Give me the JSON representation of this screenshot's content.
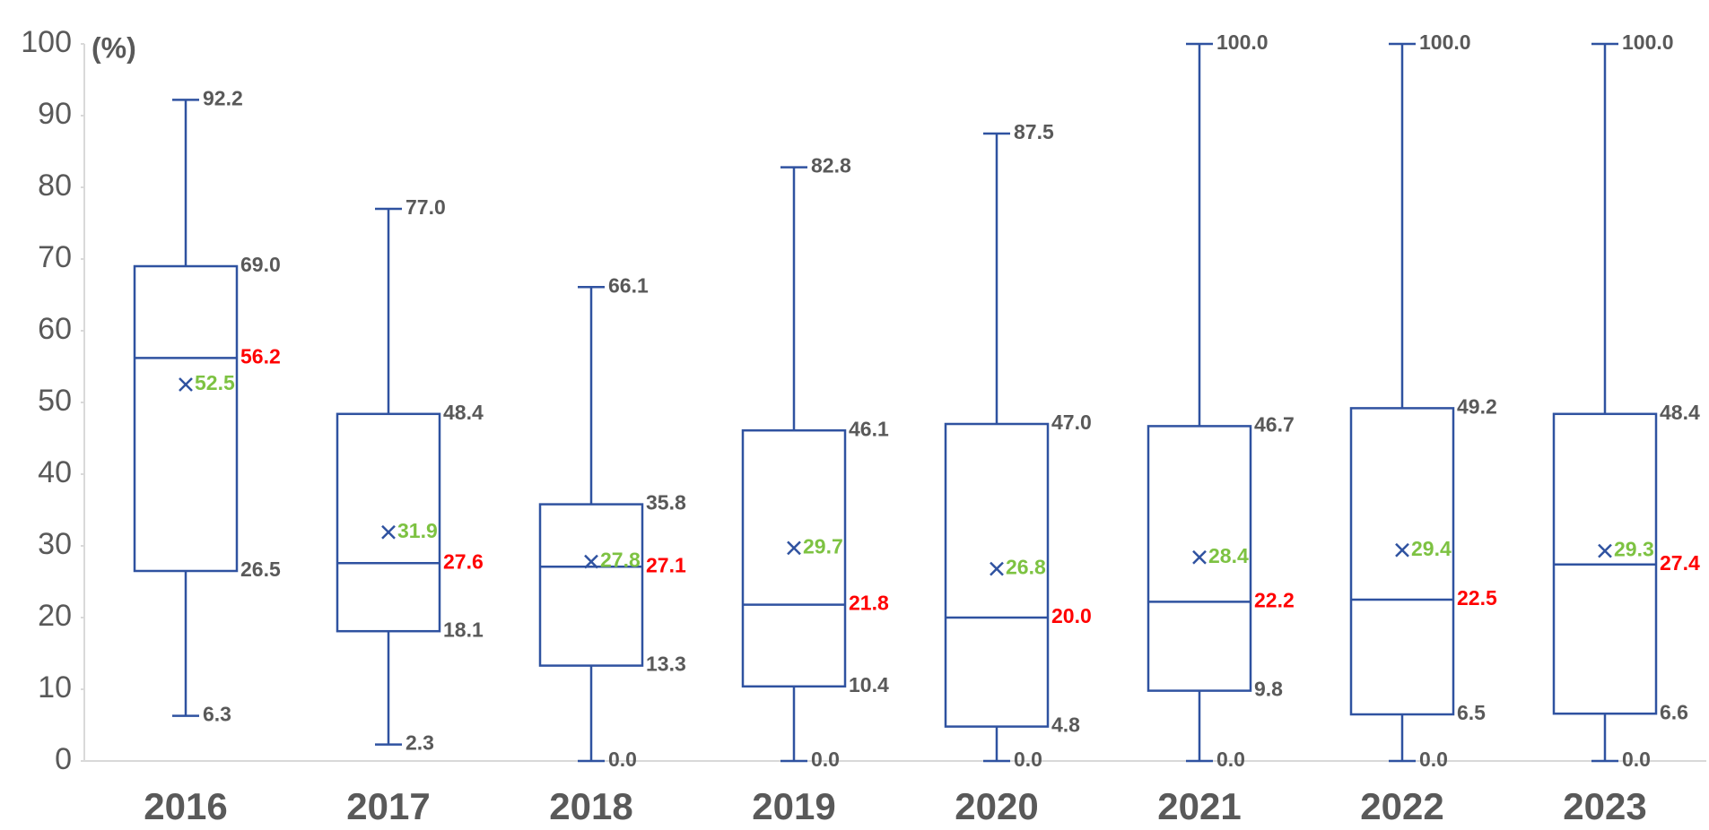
{
  "chart_data": {
    "type": "box",
    "y_label": "(%)",
    "categories": [
      "2016",
      "2017",
      "2018",
      "2019",
      "2020",
      "2021",
      "2022",
      "2023"
    ],
    "min": {
      "values": [
        6.3,
        2.3,
        0,
        0,
        0,
        0,
        0,
        0
      ],
      "value_labels": [
        "6.3",
        "2.3",
        "0.0",
        "0.0",
        "0.0",
        "0.0",
        "0.0",
        "0.0"
      ],
      "color": "#595959"
    },
    "q1": {
      "values": [
        26.5,
        18.1,
        13.3,
        10.4,
        4.8,
        9.8,
        6.5,
        6.6
      ],
      "value_labels": [
        "26.5",
        "18.1",
        "13.3",
        "10.4",
        "4.8",
        "9.8",
        "6.5",
        "6.6"
      ],
      "color": "#595959"
    },
    "median": {
      "values": [
        56.2,
        27.6,
        27.1,
        21.8,
        20.0,
        22.2,
        22.5,
        27.4
      ],
      "value_labels": [
        "56.2",
        "27.6",
        "27.1",
        "21.8",
        "20.0",
        "22.2",
        "22.5",
        "27.4"
      ],
      "color": "#ff0000"
    },
    "q3": {
      "values": [
        69,
        48.4,
        35.8,
        46.1,
        47,
        46.7,
        49.2,
        48.4
      ],
      "value_labels": [
        "69.0",
        "48.4",
        "35.8",
        "46.1",
        "47.0",
        "46.7",
        "49.2",
        "48.4"
      ],
      "color": "#595959"
    },
    "max": {
      "values": [
        92.2,
        77,
        66.1,
        82.8,
        87.5,
        100,
        100,
        100
      ],
      "value_labels": [
        "92.2",
        "77.0",
        "66.1",
        "82.8",
        "87.5",
        "100.0",
        "100.0",
        "100.0"
      ],
      "color": "#595959"
    },
    "mean": {
      "values": [
        52.5,
        31.9,
        27.8,
        29.7,
        26.8,
        28.4,
        29.4,
        29.3
      ],
      "value_labels": [
        "52.5",
        "31.9",
        "27.8",
        "29.7",
        "26.8",
        "28.4",
        "29.4",
        "29.3"
      ],
      "color": "#7dc242"
    },
    "box_color": "#2f52a0",
    "ylim": [
      0,
      100
    ],
    "yticks": [
      0,
      10,
      20,
      30,
      40,
      50,
      60,
      70,
      80,
      90,
      100
    ]
  }
}
